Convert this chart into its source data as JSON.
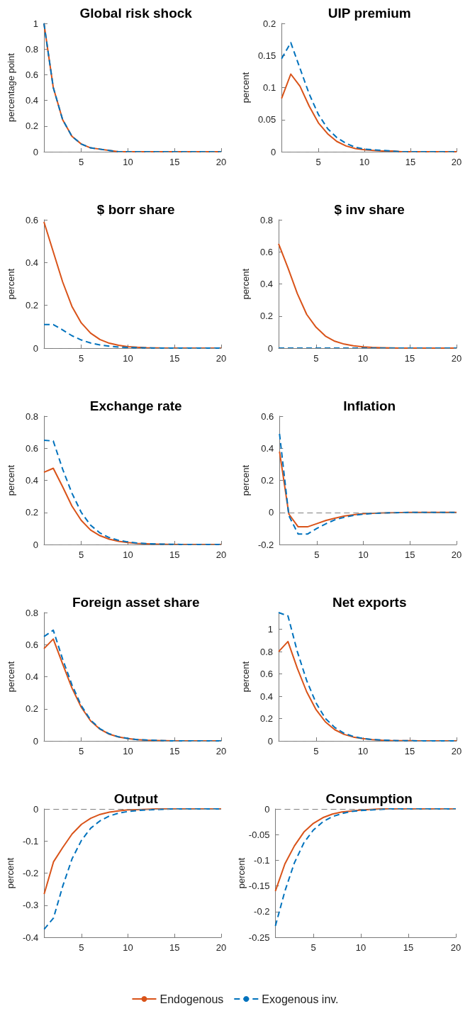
{
  "chart_data": [
    {
      "type": "line",
      "title": "Global risk shock",
      "ylabel": "percentage point",
      "x": [
        1,
        2,
        3,
        4,
        5,
        6,
        7,
        8,
        9,
        10,
        11,
        12,
        13,
        14,
        15,
        16,
        17,
        18,
        19,
        20
      ],
      "xlim": [
        1,
        20
      ],
      "xticks": [
        5,
        10,
        15,
        20
      ],
      "ylim": [
        0,
        1
      ],
      "yticks": [
        0,
        0.2,
        0.4,
        0.6,
        0.8,
        1
      ],
      "ref_lines": [
        {
          "axis": "y",
          "value": 0,
          "color": "#808080",
          "line_style": "dashed"
        }
      ],
      "series": [
        {
          "color": "#d95319",
          "line_style": "solid",
          "values": [
            1,
            0.5,
            0.25,
            0.12,
            0.06,
            0.03,
            0.02,
            0.01,
            0,
            0,
            0,
            0,
            0,
            0,
            0,
            0,
            0,
            0,
            0,
            0
          ]
        },
        {
          "color": "#0072bd",
          "line_style": "dashed",
          "values": [
            1,
            0.5,
            0.25,
            0.12,
            0.06,
            0.03,
            0.02,
            0.01,
            0,
            0,
            0,
            0,
            0,
            0,
            0,
            0,
            0,
            0,
            0,
            0
          ]
        }
      ]
    },
    {
      "type": "line",
      "title": "UIP premium",
      "ylabel": "percent",
      "x": [
        1,
        2,
        3,
        4,
        5,
        6,
        7,
        8,
        9,
        10,
        11,
        12,
        13,
        14,
        15,
        16,
        17,
        18,
        19,
        20
      ],
      "xlim": [
        1,
        20
      ],
      "xticks": [
        5,
        10,
        15,
        20
      ],
      "ylim": [
        0,
        0.2
      ],
      "yticks": [
        0,
        0.05,
        0.1,
        0.15,
        0.2
      ],
      "ref_lines": [
        {
          "axis": "y",
          "value": 0,
          "color": "#808080",
          "line_style": "dashed"
        }
      ],
      "series": [
        {
          "color": "#d95319",
          "line_style": "solid",
          "values": [
            0.083,
            0.121,
            0.102,
            0.071,
            0.045,
            0.028,
            0.016,
            0.009,
            0.005,
            0.003,
            0.002,
            0.001,
            0.001,
            0,
            0,
            0,
            0,
            0,
            0,
            0
          ]
        },
        {
          "color": "#0072bd",
          "line_style": "dashed",
          "values": [
            0.145,
            0.17,
            0.13,
            0.09,
            0.058,
            0.036,
            0.022,
            0.013,
            0.007,
            0.004,
            0.003,
            0.002,
            0.001,
            0,
            0,
            0,
            0,
            0,
            0,
            0
          ]
        }
      ]
    },
    {
      "type": "line",
      "title": "$ borr share",
      "ylabel": "percent",
      "x": [
        1,
        2,
        3,
        4,
        5,
        6,
        7,
        8,
        9,
        10,
        11,
        12,
        13,
        14,
        15,
        16,
        17,
        18,
        19,
        20
      ],
      "xlim": [
        1,
        20
      ],
      "xticks": [
        5,
        10,
        15,
        20
      ],
      "ylim": [
        0,
        0.6
      ],
      "yticks": [
        0,
        0.2,
        0.4,
        0.6
      ],
      "ref_lines": [
        {
          "axis": "y",
          "value": 0,
          "color": "#808080",
          "line_style": "dashed"
        }
      ],
      "series": [
        {
          "color": "#d95319",
          "line_style": "solid",
          "values": [
            0.59,
            0.45,
            0.31,
            0.195,
            0.118,
            0.07,
            0.04,
            0.023,
            0.013,
            0.007,
            0.004,
            0.002,
            0.001,
            0,
            0,
            0,
            0,
            0,
            0,
            0
          ]
        },
        {
          "color": "#0072bd",
          "line_style": "dashed",
          "values": [
            0.11,
            0.11,
            0.085,
            0.058,
            0.038,
            0.024,
            0.015,
            0.009,
            0.005,
            0.003,
            0.002,
            0.001,
            0,
            0,
            0,
            0,
            0,
            0,
            0,
            0
          ]
        }
      ]
    },
    {
      "type": "line",
      "title": "$ inv share",
      "ylabel": "percent",
      "x": [
        1,
        2,
        3,
        4,
        5,
        6,
        7,
        8,
        9,
        10,
        11,
        12,
        13,
        14,
        15,
        16,
        17,
        18,
        19,
        20
      ],
      "xlim": [
        1,
        20
      ],
      "xticks": [
        5,
        10,
        15,
        20
      ],
      "ylim": [
        0,
        0.8
      ],
      "yticks": [
        0,
        0.2,
        0.4,
        0.6,
        0.8
      ],
      "ref_lines": [
        {
          "axis": "y",
          "value": 0,
          "color": "#808080",
          "line_style": "dashed"
        }
      ],
      "series": [
        {
          "color": "#d95319",
          "line_style": "solid",
          "values": [
            0.65,
            0.5,
            0.34,
            0.21,
            0.13,
            0.075,
            0.043,
            0.025,
            0.014,
            0.008,
            0.004,
            0.002,
            0.001,
            0,
            0,
            0,
            0,
            0,
            0,
            0
          ]
        },
        {
          "color": "#0072bd",
          "line_style": "dashed",
          "values": [
            0,
            0,
            0,
            0,
            0,
            0,
            0,
            0,
            0,
            0,
            0,
            0,
            0,
            0,
            0,
            0,
            0,
            0,
            0,
            0
          ]
        }
      ]
    },
    {
      "type": "line",
      "title": "Exchange rate",
      "ylabel": "percent",
      "x": [
        1,
        2,
        3,
        4,
        5,
        6,
        7,
        8,
        9,
        10,
        11,
        12,
        13,
        14,
        15,
        16,
        17,
        18,
        19,
        20
      ],
      "xlim": [
        1,
        20
      ],
      "xticks": [
        5,
        10,
        15,
        20
      ],
      "ylim": [
        0,
        0.8
      ],
      "yticks": [
        0,
        0.2,
        0.4,
        0.6,
        0.8
      ],
      "ref_lines": [
        {
          "axis": "y",
          "value": 0,
          "color": "#808080",
          "line_style": "dashed"
        }
      ],
      "series": [
        {
          "color": "#d95319",
          "line_style": "solid",
          "values": [
            0.45,
            0.475,
            0.36,
            0.24,
            0.15,
            0.09,
            0.055,
            0.033,
            0.02,
            0.012,
            0.007,
            0.004,
            0.002,
            0.001,
            0,
            0,
            0,
            0,
            0,
            0
          ]
        },
        {
          "color": "#0072bd",
          "line_style": "dashed",
          "values": [
            0.65,
            0.645,
            0.47,
            0.32,
            0.2,
            0.12,
            0.072,
            0.043,
            0.026,
            0.016,
            0.009,
            0.005,
            0.003,
            0.002,
            0.001,
            0,
            0,
            0,
            0,
            0
          ]
        }
      ]
    },
    {
      "type": "line",
      "title": "Inflation",
      "ylabel": "percent",
      "x": [
        1,
        2,
        3,
        4,
        5,
        6,
        7,
        8,
        9,
        10,
        11,
        12,
        13,
        14,
        15,
        16,
        17,
        18,
        19,
        20
      ],
      "xlim": [
        1,
        20
      ],
      "xticks": [
        5,
        10,
        15,
        20
      ],
      "ylim": [
        -0.2,
        0.6
      ],
      "yticks": [
        -0.2,
        0,
        0.2,
        0.4,
        0.6
      ],
      "ref_lines": [
        {
          "axis": "y",
          "value": 0,
          "color": "#808080",
          "line_style": "dashed"
        }
      ],
      "series": [
        {
          "color": "#d95319",
          "line_style": "solid",
          "values": [
            0.38,
            -0.01,
            -0.09,
            -0.09,
            -0.07,
            -0.05,
            -0.035,
            -0.022,
            -0.014,
            -0.008,
            -0.005,
            -0.003,
            -0.002,
            -0.001,
            0,
            0,
            0,
            0,
            0,
            0
          ]
        },
        {
          "color": "#0072bd",
          "line_style": "dashed",
          "values": [
            0.49,
            -0.02,
            -0.135,
            -0.135,
            -0.1,
            -0.07,
            -0.045,
            -0.03,
            -0.018,
            -0.011,
            -0.006,
            -0.004,
            -0.002,
            -0.001,
            0,
            0,
            0,
            0,
            0,
            0
          ]
        }
      ]
    },
    {
      "type": "line",
      "title": "Foreign asset share",
      "ylabel": "percent",
      "x": [
        1,
        2,
        3,
        4,
        5,
        6,
        7,
        8,
        9,
        10,
        11,
        12,
        13,
        14,
        15,
        16,
        17,
        18,
        19,
        20
      ],
      "xlim": [
        1,
        20
      ],
      "xticks": [
        5,
        10,
        15,
        20
      ],
      "ylim": [
        0,
        0.8
      ],
      "yticks": [
        0,
        0.2,
        0.4,
        0.6,
        0.8
      ],
      "ref_lines": [
        {
          "axis": "y",
          "value": 0,
          "color": "#808080",
          "line_style": "dashed"
        }
      ],
      "series": [
        {
          "color": "#d95319",
          "line_style": "solid",
          "values": [
            0.575,
            0.635,
            0.48,
            0.33,
            0.21,
            0.125,
            0.073,
            0.042,
            0.024,
            0.014,
            0.008,
            0.004,
            0.002,
            0.001,
            0,
            0,
            0,
            0,
            0,
            0
          ]
        },
        {
          "color": "#0072bd",
          "line_style": "dashed",
          "values": [
            0.65,
            0.69,
            0.51,
            0.35,
            0.22,
            0.13,
            0.076,
            0.044,
            0.025,
            0.015,
            0.008,
            0.005,
            0.003,
            0.001,
            0,
            0,
            0,
            0,
            0,
            0
          ]
        }
      ]
    },
    {
      "type": "line",
      "title": "Net exports",
      "ylabel": "percent",
      "x": [
        1,
        2,
        3,
        4,
        5,
        6,
        7,
        8,
        9,
        10,
        11,
        12,
        13,
        14,
        15,
        16,
        17,
        18,
        19,
        20
      ],
      "xlim": [
        1,
        20
      ],
      "xticks": [
        5,
        10,
        15,
        20
      ],
      "ylim": [
        0,
        1.15
      ],
      "yticks": [
        0,
        0.2,
        0.4,
        0.6,
        0.8,
        1
      ],
      "ref_lines": [
        {
          "axis": "y",
          "value": 0,
          "color": "#808080",
          "line_style": "dashed"
        }
      ],
      "series": [
        {
          "color": "#d95319",
          "line_style": "solid",
          "values": [
            0.8,
            0.89,
            0.65,
            0.44,
            0.28,
            0.17,
            0.1,
            0.058,
            0.034,
            0.02,
            0.011,
            0.006,
            0.003,
            0.002,
            0.001,
            0,
            0,
            0,
            0,
            0
          ]
        },
        {
          "color": "#0072bd",
          "line_style": "dashed",
          "values": [
            1.15,
            1.12,
            0.8,
            0.54,
            0.34,
            0.2,
            0.12,
            0.068,
            0.039,
            0.022,
            0.012,
            0.007,
            0.004,
            0.002,
            0.001,
            0,
            0,
            0,
            0,
            0
          ]
        }
      ]
    },
    {
      "type": "line",
      "title": "Output",
      "ylabel": "percent",
      "x": [
        1,
        2,
        3,
        4,
        5,
        6,
        7,
        8,
        9,
        10,
        11,
        12,
        13,
        14,
        15,
        16,
        17,
        18,
        19,
        20
      ],
      "xlim": [
        1,
        20
      ],
      "xticks": [
        5,
        10,
        15,
        20
      ],
      "ylim": [
        -0.4,
        0
      ],
      "yticks": [
        -0.4,
        -0.3,
        -0.2,
        -0.1,
        0
      ],
      "ref_lines": [
        {
          "axis": "y",
          "value": 0,
          "color": "#808080",
          "line_style": "dashed"
        }
      ],
      "series": [
        {
          "color": "#d95319",
          "line_style": "solid",
          "values": [
            -0.265,
            -0.165,
            -0.12,
            -0.078,
            -0.048,
            -0.029,
            -0.017,
            -0.01,
            -0.006,
            -0.003,
            -0.002,
            -0.001,
            0,
            0,
            0,
            0,
            0,
            0,
            0,
            0
          ]
        },
        {
          "color": "#0072bd",
          "line_style": "dashed",
          "values": [
            -0.375,
            -0.34,
            -0.24,
            -0.155,
            -0.098,
            -0.06,
            -0.037,
            -0.022,
            -0.013,
            -0.008,
            -0.005,
            -0.003,
            -0.002,
            -0.001,
            0,
            0,
            0,
            0,
            0,
            0
          ]
        }
      ]
    },
    {
      "type": "line",
      "title": "Consumption",
      "ylabel": "percent",
      "legend": "bottom",
      "x": [
        1,
        2,
        3,
        4,
        5,
        6,
        7,
        8,
        9,
        10,
        11,
        12,
        13,
        14,
        15,
        16,
        17,
        18,
        19,
        20
      ],
      "xlim": [
        1,
        20
      ],
      "xticks": [
        5,
        10,
        15,
        20
      ],
      "ylim": [
        -0.25,
        0
      ],
      "yticks": [
        -0.25,
        -0.2,
        -0.15,
        -0.1,
        -0.05,
        0
      ],
      "ref_lines": [
        {
          "axis": "y",
          "value": 0,
          "color": "#808080",
          "line_style": "dashed"
        }
      ],
      "series": [
        {
          "name": "Endogenous",
          "color": "#d95319",
          "line_style": "solid",
          "values": [
            -0.16,
            -0.107,
            -0.072,
            -0.045,
            -0.028,
            -0.017,
            -0.01,
            -0.006,
            -0.004,
            -0.002,
            -0.001,
            0,
            0,
            0,
            0,
            0,
            0,
            0,
            0,
            0
          ]
        },
        {
          "name": "Exogenous inv.",
          "color": "#0072bd",
          "line_style": "dashed",
          "values": [
            -0.228,
            -0.16,
            -0.105,
            -0.066,
            -0.041,
            -0.025,
            -0.015,
            -0.009,
            -0.005,
            -0.003,
            -0.002,
            -0.001,
            0,
            0,
            0,
            0,
            0,
            0,
            0,
            0
          ]
        }
      ]
    }
  ]
}
